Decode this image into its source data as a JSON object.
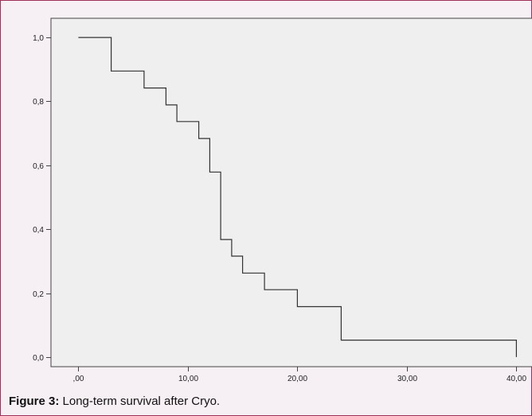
{
  "caption": {
    "label": "Figure 3:",
    "text": "Long-term survival after Cryo."
  },
  "chart_data": {
    "type": "line",
    "step": true,
    "title": "",
    "xlabel": "",
    "ylabel": "",
    "xlim": [
      -2.5,
      41.5
    ],
    "ylim": [
      -0.03,
      1.06
    ],
    "x_ticks": [
      0,
      10,
      20,
      30,
      40
    ],
    "x_tick_labels": [
      ",00",
      "10,00",
      "20,00",
      "30,00",
      "40,00"
    ],
    "y_ticks": [
      0.0,
      0.2,
      0.4,
      0.6,
      0.8,
      1.0
    ],
    "y_tick_labels": [
      "0,0",
      "0,2",
      "0,4",
      "0,6",
      "0,8",
      "1,0"
    ],
    "grid": false,
    "series": [
      {
        "x": [
          0,
          3,
          6,
          8,
          9,
          11,
          12,
          13,
          14,
          15,
          17,
          20,
          24,
          40
        ],
        "y": [
          1.0,
          0.895,
          0.842,
          0.789,
          0.737,
          0.684,
          0.579,
          0.368,
          0.316,
          0.263,
          0.211,
          0.158,
          0.053,
          0.0
        ]
      }
    ],
    "colors": {
      "line": "#333333",
      "plot_bg": "#efefef",
      "axis": "#444444"
    }
  }
}
